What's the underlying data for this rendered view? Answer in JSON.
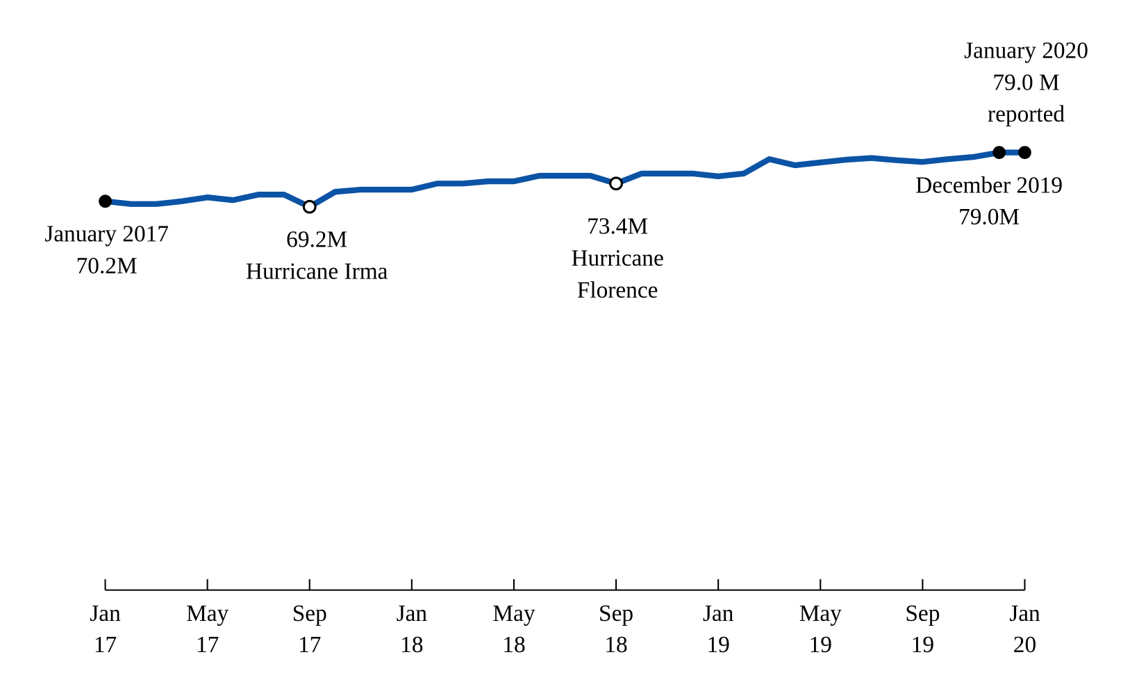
{
  "chart_data": {
    "type": "line",
    "x": [
      "2017-01",
      "2017-02",
      "2017-03",
      "2017-04",
      "2017-05",
      "2017-06",
      "2017-07",
      "2017-08",
      "2017-09",
      "2017-10",
      "2017-11",
      "2017-12",
      "2018-01",
      "2018-02",
      "2018-03",
      "2018-04",
      "2018-05",
      "2018-06",
      "2018-07",
      "2018-08",
      "2018-09",
      "2018-10",
      "2018-11",
      "2018-12",
      "2019-01",
      "2019-02",
      "2019-03",
      "2019-04",
      "2019-05",
      "2019-06",
      "2019-07",
      "2019-08",
      "2019-09",
      "2019-10",
      "2019-11",
      "2019-12",
      "2020-01"
    ],
    "series": [
      {
        "color": "#0b53a5",
        "values": [
          70.2,
          69.7,
          69.7,
          70.2,
          70.9,
          70.4,
          71.4,
          71.4,
          69.2,
          71.9,
          72.3,
          72.3,
          72.3,
          73.4,
          73.4,
          73.8,
          73.8,
          74.8,
          74.8,
          74.8,
          73.4,
          75.2,
          75.2,
          75.2,
          74.7,
          75.2,
          77.8,
          76.7,
          77.2,
          77.7,
          78.0,
          77.6,
          77.3,
          77.8,
          78.2,
          79.0,
          79.0
        ]
      }
    ],
    "xlim": [
      "2017-01",
      "2020-01"
    ],
    "xticks": [
      {
        "value": "2017-01",
        "label": "Jan 17"
      },
      {
        "value": "2017-05",
        "label": "May 17"
      },
      {
        "value": "2017-09",
        "label": "Sep 17"
      },
      {
        "value": "2018-01",
        "label": "Jan 18"
      },
      {
        "value": "2018-05",
        "label": "May 18"
      },
      {
        "value": "2018-09",
        "label": "Sep 18"
      },
      {
        "value": "2019-01",
        "label": "Jan 19"
      },
      {
        "value": "2019-05",
        "label": "May 19"
      },
      {
        "value": "2019-09",
        "label": "Sep 19"
      },
      {
        "value": "2020-01",
        "label": "Jan 20"
      }
    ],
    "ylim": [
      0,
      100
    ],
    "annotations": [
      {
        "x": "2017-01",
        "marker": "filled",
        "position": "below",
        "lines": [
          "January 2017",
          "70.2M"
        ]
      },
      {
        "x": "2017-09",
        "marker": "hollow",
        "position": "below",
        "lines": [
          "69.2M",
          "Hurricane Irma"
        ]
      },
      {
        "x": "2018-09",
        "marker": "hollow",
        "position": "below",
        "lines": [
          "73.4M",
          "Hurricane",
          "Florence"
        ]
      },
      {
        "x": "2019-12",
        "marker": "filled",
        "position": "below",
        "lines": [
          "December 2019",
          "79.0M"
        ]
      },
      {
        "x": "2020-01",
        "marker": "filled",
        "position": "above",
        "lines": [
          "January 2020",
          "79.0 M",
          "reported"
        ]
      }
    ]
  }
}
